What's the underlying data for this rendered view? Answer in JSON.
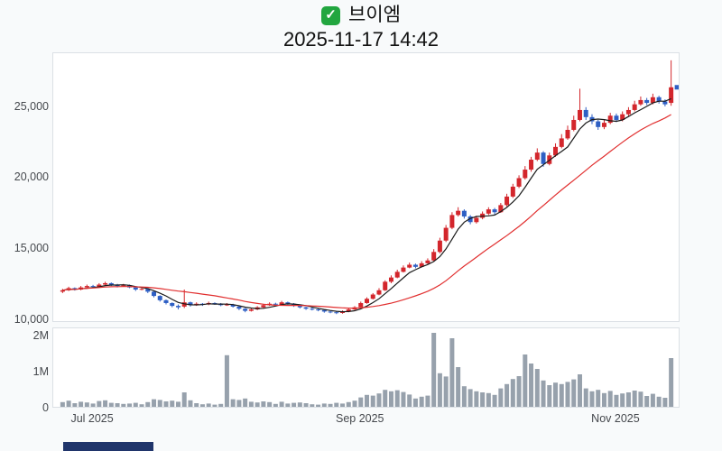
{
  "header": {
    "check_icon": "✓",
    "symbol_name": "브이엠",
    "datetime": "2025-11-17 14:42"
  },
  "chart_data": {
    "type": "candlestick_with_volume",
    "title": "브이엠",
    "subtitle": "2025-11-17 14:42",
    "legend_position": "none",
    "grid": false,
    "price_axis": {
      "min": 9800,
      "max": 28800,
      "ticks": [
        {
          "value": 25000,
          "label": "25,000"
        },
        {
          "value": 20000,
          "label": "20,000"
        },
        {
          "value": 15000,
          "label": "15,000"
        },
        {
          "value": 10000,
          "label": "10,000"
        }
      ]
    },
    "volume_axis": {
      "max": 2200000,
      "ticks": [
        {
          "value": 2000000,
          "label": "2M"
        },
        {
          "value": 1000000,
          "label": "1M"
        },
        {
          "value": 0,
          "label": "0"
        }
      ]
    },
    "x_axis": {
      "ticks": [
        {
          "index": 5,
          "label": "Jul 2025"
        },
        {
          "index": 49,
          "label": "Sep 2025"
        },
        {
          "index": 91,
          "label": "Nov 2025"
        }
      ]
    },
    "colors": {
      "up": "#d3262c",
      "down": "#2e5fc4",
      "ma_fast": "#1a1a1a",
      "ma_slow": "#e12f2f",
      "volume": "#97a1ac",
      "marker": "#2e5fc4"
    },
    "overlays": [
      {
        "name": "ma-fast",
        "window": 5,
        "color_key": "ma_fast"
      },
      {
        "name": "ma-slow",
        "window": 20,
        "color_key": "ma_slow"
      }
    ],
    "last_price_marker": 26400,
    "candles_format": [
      "open",
      "high",
      "low",
      "close",
      "volume"
    ],
    "candles": [
      [
        12000,
        12200,
        11900,
        12100,
        180000
      ],
      [
        12100,
        12350,
        12050,
        12250,
        220000
      ],
      [
        12250,
        12300,
        12080,
        12150,
        150000
      ],
      [
        12150,
        12400,
        12100,
        12300,
        190000
      ],
      [
        12300,
        12500,
        12250,
        12400,
        170000
      ],
      [
        12400,
        12480,
        12280,
        12350,
        140000
      ],
      [
        12350,
        12600,
        12300,
        12500,
        210000
      ],
      [
        12500,
        12700,
        12450,
        12600,
        230000
      ],
      [
        12600,
        12650,
        12400,
        12500,
        160000
      ],
      [
        12500,
        12550,
        12300,
        12400,
        150000
      ],
      [
        12400,
        12550,
        12350,
        12450,
        130000
      ],
      [
        12450,
        12500,
        12250,
        12300,
        140000
      ],
      [
        12300,
        12350,
        12050,
        12150,
        160000
      ],
      [
        12150,
        12300,
        12100,
        12200,
        120000
      ],
      [
        12200,
        12250,
        11900,
        12000,
        180000
      ],
      [
        12000,
        12050,
        11600,
        11700,
        260000
      ],
      [
        11700,
        11750,
        11300,
        11400,
        240000
      ],
      [
        11400,
        11450,
        11100,
        11200,
        200000
      ],
      [
        11200,
        11250,
        10900,
        11000,
        220000
      ],
      [
        11000,
        11100,
        10750,
        10900,
        190000
      ],
      [
        10950,
        12150,
        10850,
        11250,
        450000
      ],
      [
        11250,
        11300,
        10950,
        11050,
        230000
      ],
      [
        11050,
        11250,
        11000,
        11150,
        150000
      ],
      [
        11150,
        11200,
        11000,
        11100,
        120000
      ],
      [
        11100,
        11300,
        11050,
        11200,
        140000
      ],
      [
        11200,
        11250,
        11080,
        11150,
        110000
      ],
      [
        11150,
        11200,
        10980,
        11050,
        130000
      ],
      [
        11050,
        11200,
        11000,
        11100,
        1480000
      ],
      [
        11100,
        11150,
        10880,
        10950,
        260000
      ],
      [
        10950,
        11000,
        10700,
        10800,
        240000
      ],
      [
        10800,
        10850,
        10550,
        10650,
        280000
      ],
      [
        10650,
        10850,
        10600,
        10750,
        190000
      ],
      [
        10750,
        10980,
        10700,
        10900,
        170000
      ],
      [
        10900,
        11150,
        10850,
        11050,
        200000
      ],
      [
        11050,
        11250,
        11000,
        11150,
        180000
      ],
      [
        11150,
        11220,
        11020,
        11100,
        130000
      ],
      [
        11100,
        11350,
        11050,
        11250,
        190000
      ],
      [
        11250,
        11300,
        11080,
        11150,
        140000
      ],
      [
        11150,
        11200,
        10930,
        11000,
        160000
      ],
      [
        11000,
        11050,
        10820,
        10900,
        170000
      ],
      [
        10900,
        10950,
        10720,
        10800,
        150000
      ],
      [
        10800,
        10880,
        10680,
        10750,
        120000
      ],
      [
        10750,
        10820,
        10620,
        10700,
        110000
      ],
      [
        10700,
        10750,
        10520,
        10600,
        140000
      ],
      [
        10600,
        10680,
        10480,
        10550,
        130000
      ],
      [
        10550,
        10620,
        10420,
        10500,
        160000
      ],
      [
        10500,
        10680,
        10450,
        10600,
        140000
      ],
      [
        10600,
        10820,
        10550,
        10750,
        180000
      ],
      [
        10750,
        10980,
        10700,
        10900,
        220000
      ],
      [
        10900,
        11300,
        10850,
        11200,
        310000
      ],
      [
        11200,
        11600,
        11150,
        11500,
        380000
      ],
      [
        11500,
        11900,
        11450,
        11800,
        360000
      ],
      [
        11800,
        12250,
        11750,
        12100,
        420000
      ],
      [
        12100,
        12800,
        12050,
        12700,
        520000
      ],
      [
        12700,
        13150,
        12600,
        13000,
        480000
      ],
      [
        13000,
        13550,
        12950,
        13400,
        510000
      ],
      [
        13400,
        13850,
        13350,
        13700,
        460000
      ],
      [
        13700,
        14050,
        13650,
        13900,
        390000
      ],
      [
        13900,
        13980,
        13650,
        13750,
        280000
      ],
      [
        13750,
        14150,
        13700,
        14000,
        330000
      ],
      [
        14000,
        14350,
        13950,
        14200,
        360000
      ],
      [
        14200,
        15000,
        14150,
        14800,
        2100000
      ],
      [
        14800,
        15800,
        14700,
        15600,
        980000
      ],
      [
        15600,
        16700,
        15500,
        16500,
        890000
      ],
      [
        16500,
        17600,
        16400,
        17400,
        1950000
      ],
      [
        17400,
        17950,
        17300,
        17700,
        1150000
      ],
      [
        17700,
        17800,
        17150,
        17300,
        620000
      ],
      [
        17300,
        17400,
        16750,
        16900,
        540000
      ],
      [
        16900,
        17350,
        16800,
        17200,
        480000
      ],
      [
        17200,
        17650,
        17100,
        17500,
        450000
      ],
      [
        17500,
        17950,
        17400,
        17800,
        430000
      ],
      [
        17800,
        17900,
        17450,
        17600,
        380000
      ],
      [
        17600,
        18250,
        17550,
        18100,
        560000
      ],
      [
        18100,
        18900,
        18000,
        18700,
        680000
      ],
      [
        18700,
        19600,
        18600,
        19400,
        820000
      ],
      [
        19400,
        20200,
        19300,
        20000,
        900000
      ],
      [
        20000,
        20850,
        19900,
        20600,
        1500000
      ],
      [
        20600,
        21500,
        20450,
        21300,
        1250000
      ],
      [
        21300,
        22100,
        21200,
        21800,
        1100000
      ],
      [
        21800,
        21900,
        20800,
        21000,
        780000
      ],
      [
        21000,
        21800,
        20900,
        21600,
        650000
      ],
      [
        21600,
        22450,
        21500,
        22200,
        720000
      ],
      [
        22200,
        23100,
        22100,
        22800,
        680000
      ],
      [
        22800,
        23700,
        22700,
        23400,
        740000
      ],
      [
        23400,
        24400,
        23300,
        24100,
        810000
      ],
      [
        24100,
        26300,
        24000,
        24800,
        950000
      ],
      [
        24800,
        25000,
        24100,
        24300,
        560000
      ],
      [
        24300,
        24500,
        23800,
        24000,
        480000
      ],
      [
        24000,
        24100,
        23400,
        23600,
        520000
      ],
      [
        23600,
        24100,
        23450,
        23900,
        430000
      ],
      [
        23900,
        24600,
        23800,
        24400,
        490000
      ],
      [
        24400,
        24550,
        23950,
        24100,
        380000
      ],
      [
        24100,
        24700,
        24000,
        24500,
        420000
      ],
      [
        24500,
        25000,
        24350,
        24800,
        450000
      ],
      [
        24800,
        25450,
        24700,
        25200,
        500000
      ],
      [
        25200,
        25750,
        25100,
        25500,
        470000
      ],
      [
        25500,
        25650,
        25150,
        25300,
        350000
      ],
      [
        25300,
        25950,
        25200,
        25700,
        410000
      ],
      [
        25700,
        25800,
        25250,
        25400,
        330000
      ],
      [
        25400,
        25550,
        25050,
        25200,
        300000
      ],
      [
        25300,
        28300,
        25100,
        26400,
        1400000
      ]
    ]
  }
}
